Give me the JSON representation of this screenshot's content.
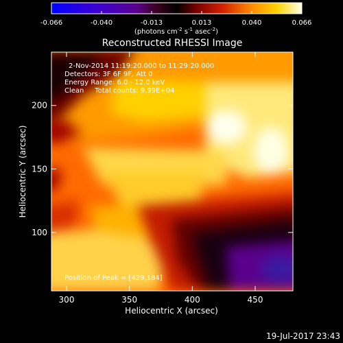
{
  "chart_data": {
    "type": "heatmap",
    "title": "Reconstructed RHESSI Image",
    "xlabel": "Heliocentric X (arcsec)",
    "ylabel": "Heliocentric Y (arcsec)",
    "xlim": [
      288,
      480
    ],
    "ylim": [
      54,
      242
    ],
    "x_ticks": [
      300,
      350,
      400,
      450
    ],
    "y_ticks": [
      100,
      150,
      200
    ],
    "colorbar": {
      "ticks": [
        "-0.066",
        "-0.040",
        "-0.013",
        "0.013",
        "0.040",
        "0.066"
      ],
      "range": [
        -0.066,
        0.066
      ],
      "unit_label": "(photons cm⁻² s⁻¹ asec⁻²)",
      "unit": {
        "prefix": "(photons cm",
        "exp1": "-2",
        "mid1": " s",
        "exp2": "-1",
        "mid2": " asec",
        "exp3": "-2",
        "suffix": ")"
      }
    },
    "annotations": [
      "2-Nov-2014 11:19:20.000 to 11:29:20.000",
      "Detectors: 3F 6F 9F, Att 0",
      "Energy Range: 6.0 - 12.0 keV",
      "Clean     Total counts: 9.99E+04"
    ],
    "peak_label": "Position of Peak = [429,184]",
    "peak_position": [
      429,
      184
    ],
    "timestamp": "19-Jul-2017 23:43"
  }
}
